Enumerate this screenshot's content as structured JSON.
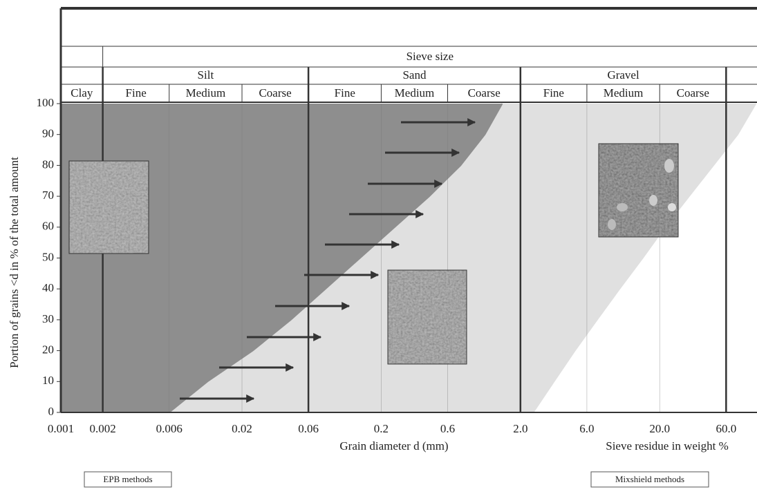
{
  "chart_data": {
    "type": "grading",
    "xlabel": "Grain diameter d (mm)",
    "x2label": "Sieve residue in weight %",
    "ylabel": "Portion of grains <d in % of the total amount",
    "xscale": "log",
    "xlim": [
      0.001,
      100
    ],
    "ylim": [
      0,
      100
    ],
    "xticks": [
      0.001,
      0.002,
      0.006,
      0.02,
      0.06,
      0.2,
      0.6,
      {
        "value": 2,
        "label": "2.0"
      },
      {
        "value": 6,
        "label": "6.0"
      },
      {
        "value": 20,
        "label": "20.0"
      },
      {
        "value": 60,
        "label": "60.0"
      }
    ],
    "yticks": [
      0,
      10,
      20,
      30,
      40,
      50,
      60,
      70,
      80,
      90,
      100
    ],
    "header": {
      "sieve_size": "Sieve size",
      "clay": "Clay",
      "fractions": [
        {
          "name": "Silt",
          "subdivisions": [
            "Fine",
            "Medium",
            "Coarse"
          ]
        },
        {
          "name": "Sand",
          "subdivisions": [
            "Fine",
            "Medium",
            "Coarse"
          ]
        },
        {
          "name": "Gravel",
          "subdivisions": [
            "Fine",
            "Medium",
            "Coarse"
          ]
        }
      ]
    },
    "series": [
      {
        "name": "Mixshield methods",
        "color": "#e0e0e0",
        "x": [
          2.47,
          3.48,
          4.92,
          7.1,
          10.3,
          15.1,
          21.8,
          32.5,
          48.6,
          72.6,
          98
        ],
        "values": [
          0,
          10,
          20,
          30,
          40,
          50,
          60,
          70,
          80,
          90,
          100
        ]
      },
      {
        "name": "EPB methods",
        "color": "#8e8e8e",
        "x": [
          0.006,
          0.0113,
          0.0239,
          0.0449,
          0.0795,
          0.141,
          0.25,
          0.443,
          0.743,
          1.11,
          1.48
        ],
        "values": [
          0,
          10,
          20,
          30,
          40,
          50,
          60,
          70,
          80,
          90,
          100
        ]
      }
    ]
  }
}
